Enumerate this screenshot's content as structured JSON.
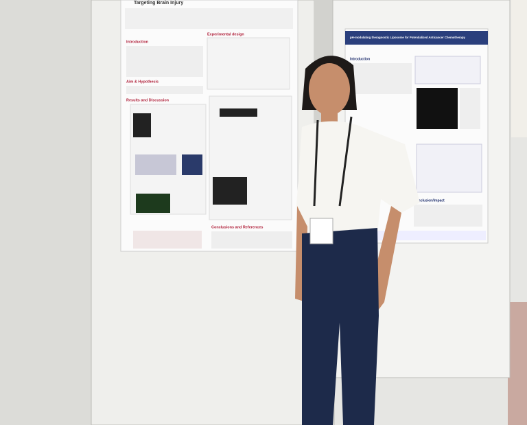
{
  "left_poster": {
    "title": "Targeting Brain Injury",
    "sections": [
      "Introduction",
      "Aim & Hypothesis",
      "Results and Discussion",
      "Experimental design",
      "Conclusions and References"
    ]
  },
  "right_poster": {
    "title": "pH-modulating theragnostic Liposome for Potentialized Anticancer Chemotherapy",
    "sections": [
      "Introduction",
      "Conclusion/Impact"
    ]
  }
}
